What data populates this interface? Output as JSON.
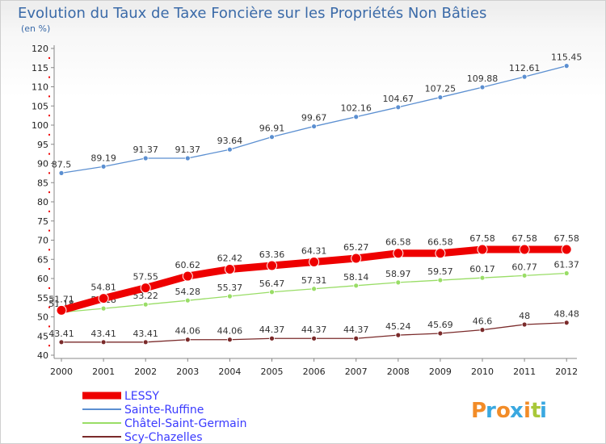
{
  "chart_data": {
    "type": "line",
    "title": "Evolution du Taux de Taxe Foncière sur les Propriétés Non Bâties",
    "ylabel": "(en %)",
    "xlabel": "",
    "x": [
      "2000",
      "2001",
      "2002",
      "2003",
      "2004",
      "2005",
      "2006",
      "2007",
      "2008",
      "2009",
      "2010",
      "2011",
      "2012"
    ],
    "ylim": [
      40,
      120
    ],
    "yticks": [
      40,
      45,
      50,
      55,
      60,
      65,
      70,
      75,
      80,
      85,
      90,
      95,
      100,
      105,
      110,
      115,
      120
    ],
    "grid": false,
    "legend_position": "bottom-left",
    "series": [
      {
        "name": "LESSY",
        "color": "#ee0000",
        "values": [
          51.71,
          54.81,
          57.55,
          60.62,
          62.42,
          63.36,
          64.31,
          65.27,
          66.58,
          66.58,
          67.58,
          67.58,
          67.58
        ],
        "labels": [
          "51.71",
          "54.81",
          "57.55",
          "60.62",
          "62.42",
          "63.36",
          "64.31",
          "65.27",
          "66.58",
          "66.58",
          "67.58",
          "67.58",
          "67.58"
        ]
      },
      {
        "name": "Sainte-Ruffine",
        "color": "#5b8fd1",
        "values": [
          87.5,
          89.19,
          91.37,
          91.37,
          93.64,
          96.91,
          99.67,
          102.16,
          104.67,
          107.25,
          109.88,
          112.61,
          115.45
        ],
        "labels": [
          "87.5",
          "89.19",
          "91.37",
          "91.37",
          "93.64",
          "96.91",
          "99.67",
          "102.16",
          "104.67",
          "107.25",
          "109.88",
          "112.61",
          "115.45"
        ]
      },
      {
        "name": "Châtel-Saint-Germain",
        "color": "#99dd66",
        "values": [
          51.18,
          52.18,
          53.22,
          54.28,
          55.37,
          56.47,
          57.31,
          58.14,
          58.97,
          59.57,
          60.17,
          60.77,
          61.37
        ],
        "labels": [
          "51.18",
          "52.18",
          "53.22",
          "54.28",
          "55.37",
          "56.47",
          "57.31",
          "58.14",
          "58.97",
          "59.57",
          "60.17",
          "60.77",
          "61.37"
        ]
      },
      {
        "name": "Scy-Chazelles",
        "color": "#7a2a2a",
        "values": [
          43.41,
          43.41,
          43.41,
          44.06,
          44.06,
          44.37,
          44.37,
          44.37,
          45.24,
          45.69,
          46.6,
          48,
          48.48
        ],
        "labels": [
          "43.41",
          "43.41",
          "43.41",
          "44.06",
          "44.06",
          "44.37",
          "44.37",
          "44.37",
          "45.24",
          "45.69",
          "46.6",
          "48",
          "48.48"
        ]
      }
    ]
  },
  "brand": {
    "text": "Proxiti",
    "letters": [
      "P",
      "r",
      "o",
      "x",
      "i",
      "t",
      "i"
    ],
    "colors": [
      "#f28c28",
      "#3aa8e0",
      "#f28c28",
      "#3aa8e0",
      "#f28c28",
      "#a8c83a",
      "#3aa8e0"
    ]
  }
}
